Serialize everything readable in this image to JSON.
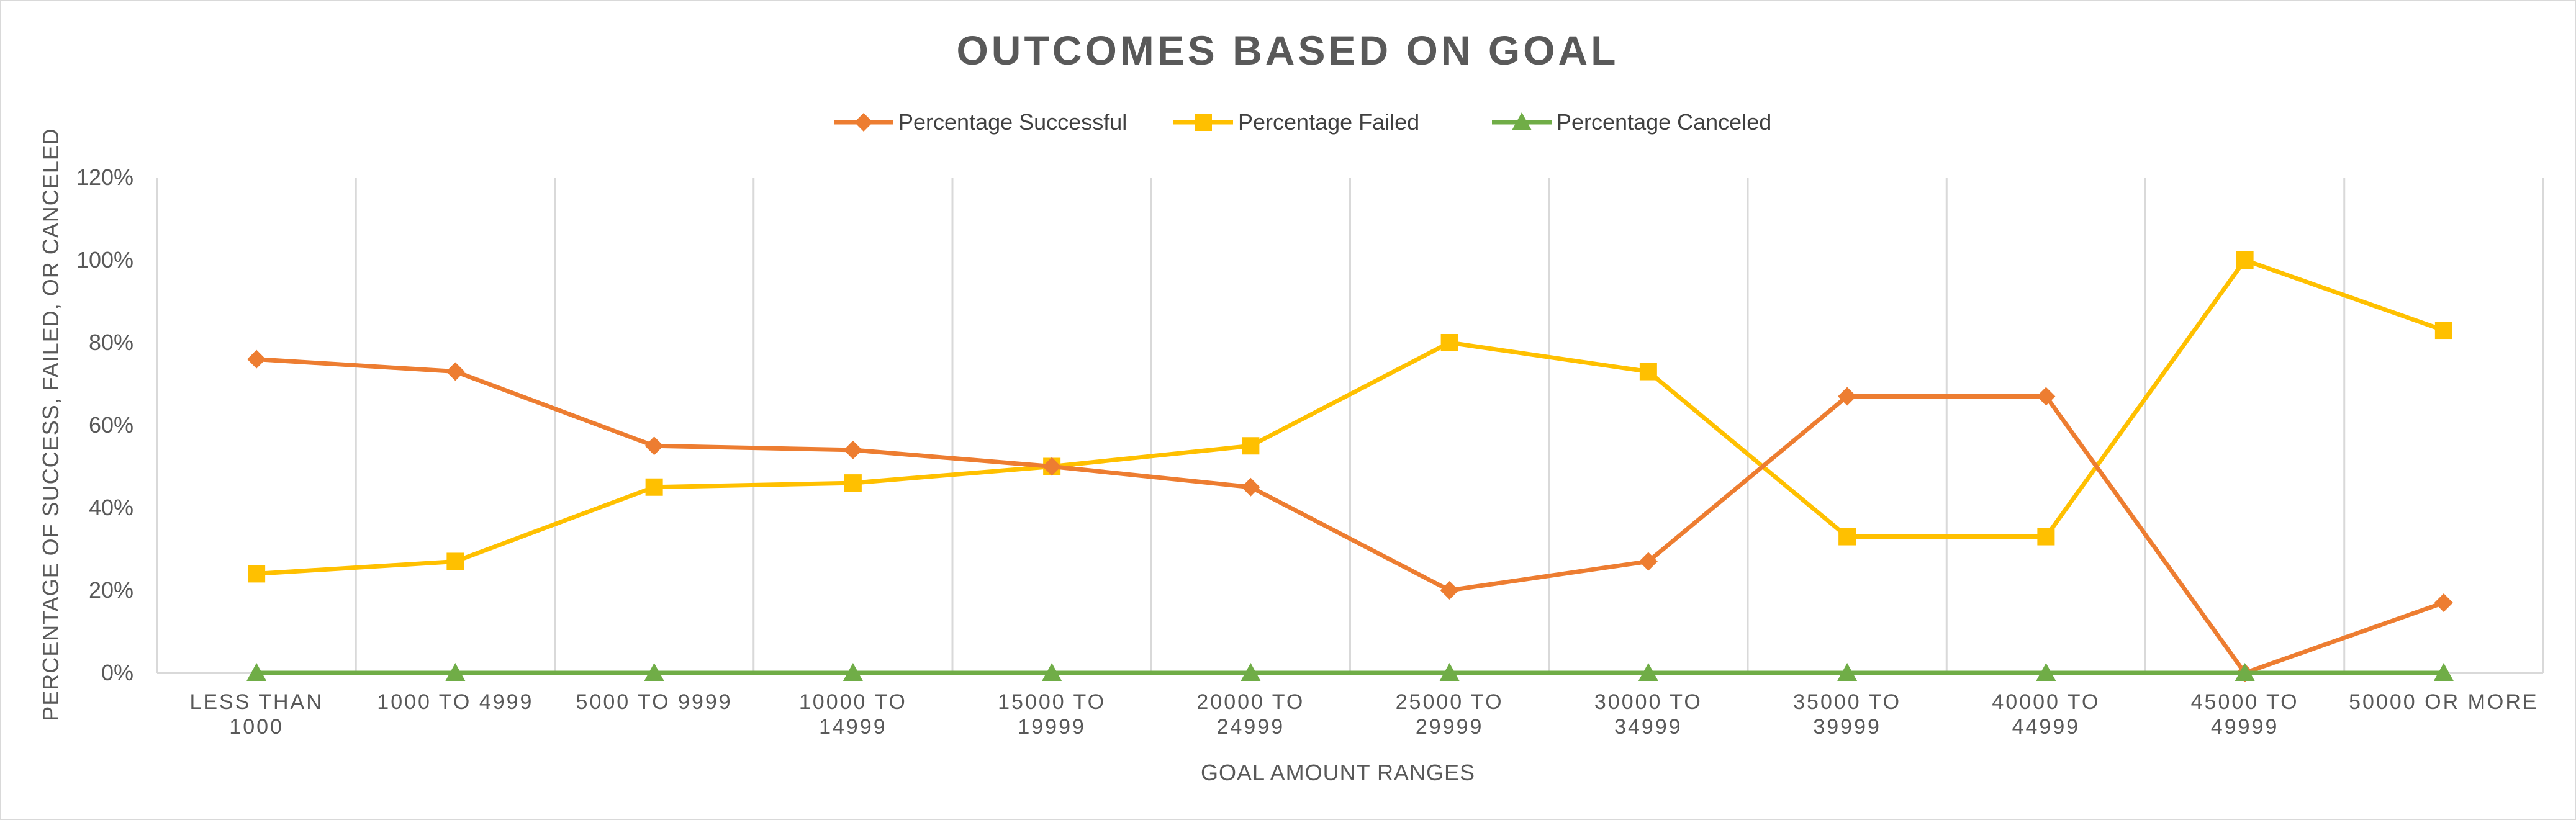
{
  "chart_data": {
    "type": "line",
    "title": "OUTCOMES BASED ON GOAL",
    "xlabel": "GOAL AMOUNT RANGES",
    "ylabel": "PERCENTAGE OF SUCCESS, FAILED, OR CANCELED",
    "ylim": [
      0,
      1.2
    ],
    "yticks": [
      0,
      0.2,
      0.4,
      0.6,
      0.8,
      1.0,
      1.2
    ],
    "ytick_labels": [
      "0%",
      "20%",
      "40%",
      "60%",
      "80%",
      "100%",
      "120%"
    ],
    "categories": [
      [
        "LESS THAN",
        "1000"
      ],
      [
        "1000 TO 4999"
      ],
      [
        "5000 TO 9999"
      ],
      [
        "10000 TO",
        "14999"
      ],
      [
        "15000 TO",
        "19999"
      ],
      [
        "20000 TO",
        "24999"
      ],
      [
        "25000 TO",
        "29999"
      ],
      [
        "30000 TO",
        "34999"
      ],
      [
        "35000 TO",
        "39999"
      ],
      [
        "40000 TO",
        "44999"
      ],
      [
        "45000 TO",
        "49999"
      ],
      [
        "50000 OR MORE"
      ]
    ],
    "grid": "vertical",
    "legend_position": "top",
    "series": [
      {
        "name": "Percentage Successful",
        "color": "#ed7d31",
        "marker": "diamond",
        "values": [
          0.76,
          0.73,
          0.55,
          0.54,
          0.5,
          0.45,
          0.2,
          0.27,
          0.67,
          0.67,
          0.0,
          0.17
        ]
      },
      {
        "name": "Percentage Failed",
        "color": "#ffc000",
        "marker": "square",
        "values": [
          0.24,
          0.27,
          0.45,
          0.46,
          0.5,
          0.55,
          0.8,
          0.73,
          0.33,
          0.33,
          1.0,
          0.83
        ]
      },
      {
        "name": "Percentage Canceled",
        "color": "#70ad47",
        "marker": "triangle",
        "values": [
          0,
          0,
          0,
          0,
          0,
          0,
          0,
          0,
          0,
          0,
          0,
          0
        ]
      }
    ]
  }
}
